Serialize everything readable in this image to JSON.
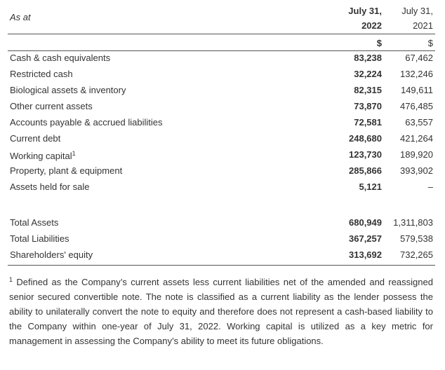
{
  "header": {
    "label": "As at",
    "columns": [
      [
        "July 31,",
        "2022"
      ],
      [
        "July 31,",
        "2021"
      ]
    ],
    "units": [
      "$",
      "$"
    ]
  },
  "table": {
    "groups": [
      [
        [
          "Cash & cash equivalents",
          "83,238",
          "67,462"
        ],
        [
          "Restricted cash",
          "32,224",
          "132,246"
        ],
        [
          "Biological assets & inventory",
          "82,315",
          "149,611"
        ],
        [
          "Other current assets",
          "73,870",
          "476,485"
        ],
        [
          "Accounts payable & accrued liabilities",
          "72,581",
          "63,557"
        ],
        [
          "Current debt",
          "248,680",
          "421,264"
        ],
        [
          "Working capital",
          "123,730",
          "189,920"
        ],
        [
          "Property, plant & equipment",
          "285,866",
          "393,902"
        ],
        [
          "Assets held for sale",
          "5,121",
          "–"
        ]
      ],
      [
        [
          "Total Assets",
          "680,949",
          "1,311,803"
        ],
        [
          "Total Liabilities",
          "367,257",
          "579,538"
        ],
        [
          "Shareholders' equity",
          "313,692",
          "732,265"
        ]
      ]
    ]
  },
  "footnote": {
    "marker": "1",
    "row": 6,
    "text": "Defined as the Company’s current assets less current liabilities net of the amended and reassigned senior secured convertible note. The note is classified as a current liability as the lender possess the ability to unilaterally convert the note to equity and therefore does not represent a cash-based liability to the Company within one-year of July 31, 2022. Working capital is utilized as a key metric for management in assessing the Company’s ability to meet its future obligations."
  }
}
